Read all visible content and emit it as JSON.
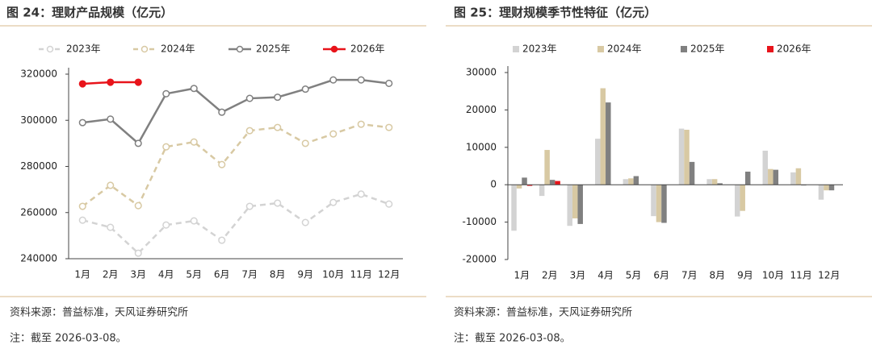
{
  "chart_data": [
    {
      "type": "line",
      "title": "图 24：理财产品规模（亿元）",
      "categories": [
        "1月",
        "2月",
        "3月",
        "4月",
        "5月",
        "6月",
        "7月",
        "8月",
        "9月",
        "10月",
        "11月",
        "12月"
      ],
      "series": [
        {
          "name": "2023年",
          "color": "#d3d3d3",
          "dashed": true,
          "filled": false,
          "values": [
            256700,
            253600,
            242400,
            254600,
            256400,
            248000,
            262700,
            264100,
            255700,
            264400,
            268000,
            263700
          ]
        },
        {
          "name": "2024年",
          "color": "#d8c9a3",
          "dashed": true,
          "filled": false,
          "values": [
            262700,
            271800,
            263000,
            288500,
            290600,
            280800,
            295500,
            296900,
            290000,
            294100,
            298300,
            296900
          ]
        },
        {
          "name": "2025年",
          "color": "#808080",
          "dashed": false,
          "filled": false,
          "values": [
            299000,
            300500,
            290000,
            311500,
            313800,
            303500,
            309500,
            310000,
            313500,
            317500,
            317500,
            316000
          ]
        },
        {
          "name": "2026年",
          "color": "#e8141b",
          "dashed": false,
          "filled": true,
          "values": [
            315800,
            316500,
            316500,
            null,
            null,
            null,
            null,
            null,
            null,
            null,
            null,
            null
          ]
        }
      ],
      "ylim": [
        240000,
        320000
      ],
      "yticks": [
        240000,
        260000,
        280000,
        300000,
        320000
      ],
      "source": "资料来源：普益标准，天风证券研究所",
      "note": "注：截至 2026-03-08。"
    },
    {
      "type": "bar",
      "title": "图 25：理财规模季节性特征（亿元）",
      "categories": [
        "1月",
        "2月",
        "3月",
        "4月",
        "5月",
        "6月",
        "7月",
        "8月",
        "9月",
        "10月",
        "11月",
        "12月"
      ],
      "series": [
        {
          "name": "2023年",
          "color": "#d3d3d3",
          "values": [
            -12300,
            -3000,
            -11000,
            12300,
            1500,
            -8400,
            15000,
            1500,
            -8500,
            9100,
            3300,
            -4000
          ]
        },
        {
          "name": "2024年",
          "color": "#d8c9a3",
          "values": [
            -1000,
            9300,
            -9000,
            25800,
            1700,
            -10000,
            14700,
            1500,
            -7000,
            4200,
            4400,
            -1500
          ]
        },
        {
          "name": "2025年",
          "color": "#808080",
          "values": [
            1900,
            1300,
            -10500,
            22000,
            2300,
            -10200,
            6100,
            400,
            3500,
            4000,
            -200,
            -1500
          ]
        },
        {
          "name": "2026年",
          "color": "#e8141b",
          "values": [
            -300,
            1000,
            0,
            null,
            null,
            null,
            null,
            null,
            null,
            null,
            null,
            null
          ]
        }
      ],
      "ylim": [
        -20000,
        30000
      ],
      "yticks": [
        -20000,
        -10000,
        0,
        10000,
        20000,
        30000
      ],
      "source": "资料来源：普益标准，天风证券研究所",
      "note": "注：截至 2026-03-08。"
    }
  ]
}
